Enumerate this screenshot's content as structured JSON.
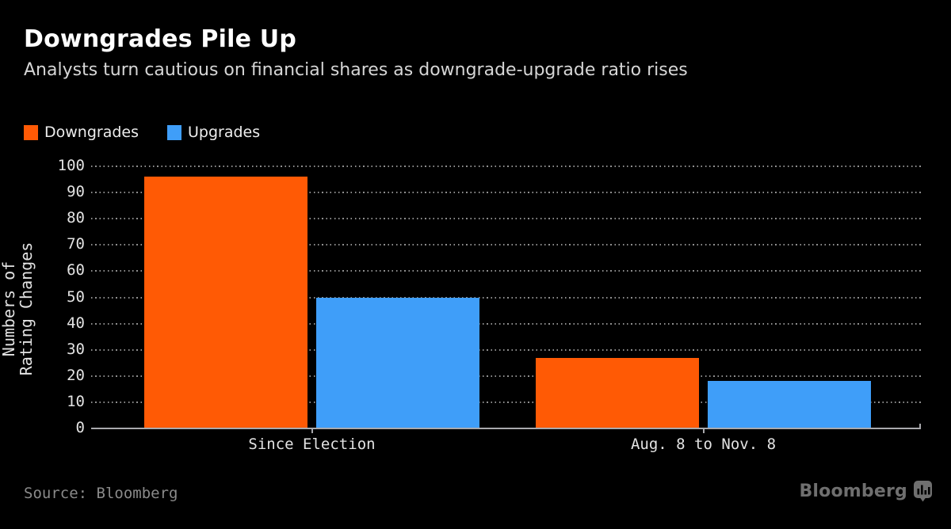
{
  "header": {
    "title": "Downgrades Pile Up",
    "subtitle": "Analysts turn cautious on financial shares as downgrade-upgrade ratio rises"
  },
  "legend": {
    "items": [
      {
        "label": "Downgrades",
        "color": "#ff5a05"
      },
      {
        "label": "Upgrades",
        "color": "#3f9ef9"
      }
    ]
  },
  "chart_data": {
    "type": "bar",
    "title": "Downgrades Pile Up",
    "subtitle": "Analysts turn cautious on financial shares as downgrade-upgrade ratio rises",
    "categories": [
      "Since Election",
      "Aug. 8 to Nov. 8"
    ],
    "series": [
      {
        "name": "Downgrades",
        "color": "#ff5a05",
        "values": [
          96,
          27
        ]
      },
      {
        "name": "Upgrades",
        "color": "#3f9ef9",
        "values": [
          50,
          18
        ]
      }
    ],
    "ylabel_lines": [
      "Numbers of",
      "Rating Changes"
    ],
    "ylabel": "Numbers of Rating Changes",
    "xlabel": "",
    "yticks": [
      0,
      10,
      20,
      30,
      40,
      50,
      60,
      70,
      80,
      90,
      100
    ],
    "ylim": [
      0,
      100
    ],
    "grid": "dotted-horizontal",
    "legend_position": "top-left"
  },
  "footer": {
    "source": "Source: Bloomberg",
    "logo_text": "Bloomberg",
    "logo_icon": "bar-chart-bubble-icon"
  },
  "colors": {
    "background": "#000000",
    "title": "#ffffff",
    "subtitle": "#d6d6d6",
    "axis": "#a9a9ad",
    "tick_text": "#e3e3e3",
    "source_text": "#8a8a8a",
    "logo": "#6f6f6f"
  }
}
